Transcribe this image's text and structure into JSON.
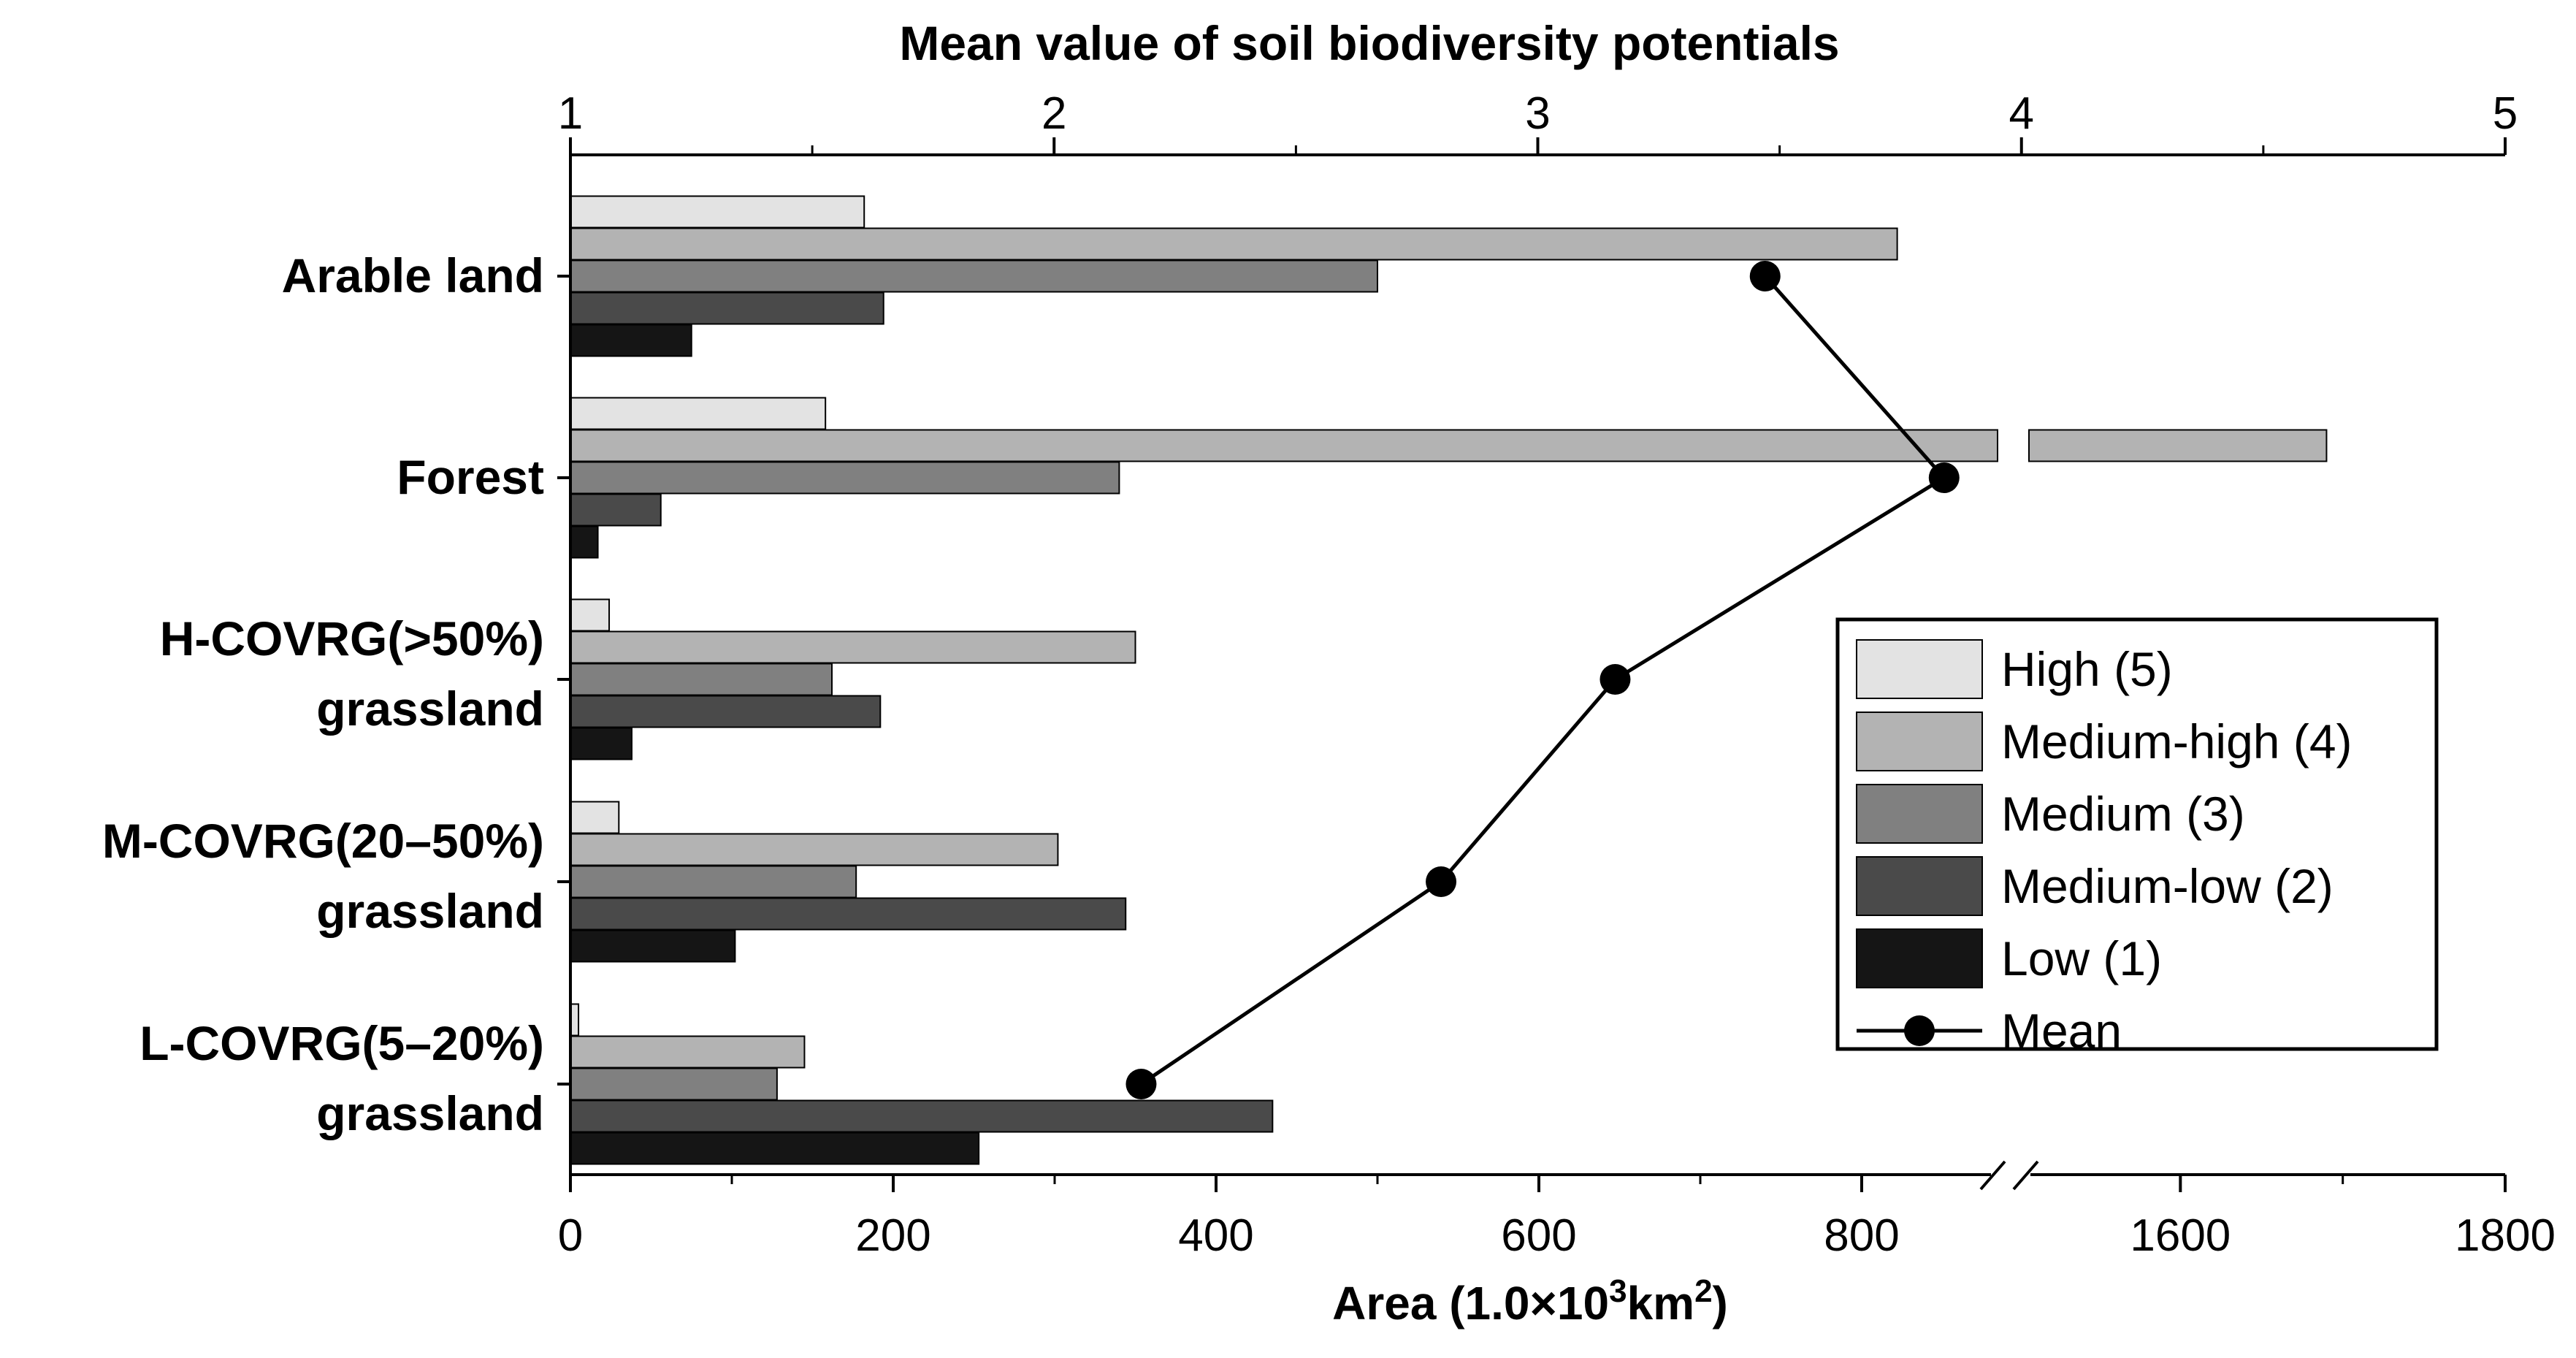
{
  "chart_data": {
    "type": "bar",
    "orientation": "horizontal",
    "categories": [
      [
        "Arable land"
      ],
      [
        "Forest"
      ],
      [
        "H-COVRG(>50%)",
        "grassland"
      ],
      [
        "M-COVRG(20–50%)",
        "grassland"
      ],
      [
        "L-COVRG(5–20%)",
        "grassland"
      ]
    ],
    "series": [
      {
        "name": "High (5)",
        "color": "#e3e3e3",
        "values": [
          182,
          158,
          24,
          30,
          5
        ]
      },
      {
        "name": "Medium-high (4)",
        "color": "#b3b3b3",
        "values": [
          822,
          1690,
          350,
          302,
          145
        ]
      },
      {
        "name": "Medium (3)",
        "color": "#808080",
        "values": [
          500,
          340,
          162,
          177,
          128
        ]
      },
      {
        "name": "Medium-low (2)",
        "color": "#4a4a4a",
        "values": [
          194,
          56,
          192,
          344,
          435
        ]
      },
      {
        "name": "Low (1)",
        "color": "#151515",
        "values": [
          75,
          17,
          38,
          102,
          253
        ]
      }
    ],
    "mean_series": {
      "name": "Mean",
      "values": [
        3.47,
        3.84,
        3.16,
        2.8,
        2.18
      ]
    },
    "x_bottom": {
      "label_prefix": "Area (1.0×10",
      "label_sup1": "3",
      "label_mid": "km",
      "label_sup2": "2",
      "label_suffix": ")",
      "segments": [
        {
          "range": [
            0,
            900
          ]
        },
        {
          "range": [
            1500,
            1800
          ]
        }
      ],
      "ticks": [
        "0",
        "200",
        "400",
        "600",
        "800",
        "1600",
        "1800"
      ],
      "tick_values": [
        0,
        200,
        400,
        600,
        800,
        1600,
        1800
      ],
      "minor_tick_values": [
        100,
        300,
        500,
        700,
        1700
      ]
    },
    "x_top": {
      "label": "Mean value of soil biodiversity potentials",
      "range": [
        1,
        5
      ],
      "ticks": [
        "1",
        "2",
        "3",
        "4",
        "5"
      ],
      "tick_values": [
        1,
        2,
        3,
        4,
        5
      ]
    },
    "legend": {
      "position": "center-right",
      "items": [
        "High (5)",
        "Medium-high (4)",
        "Medium (3)",
        "Medium-low (2)",
        "Low (1)",
        "Mean"
      ]
    }
  }
}
